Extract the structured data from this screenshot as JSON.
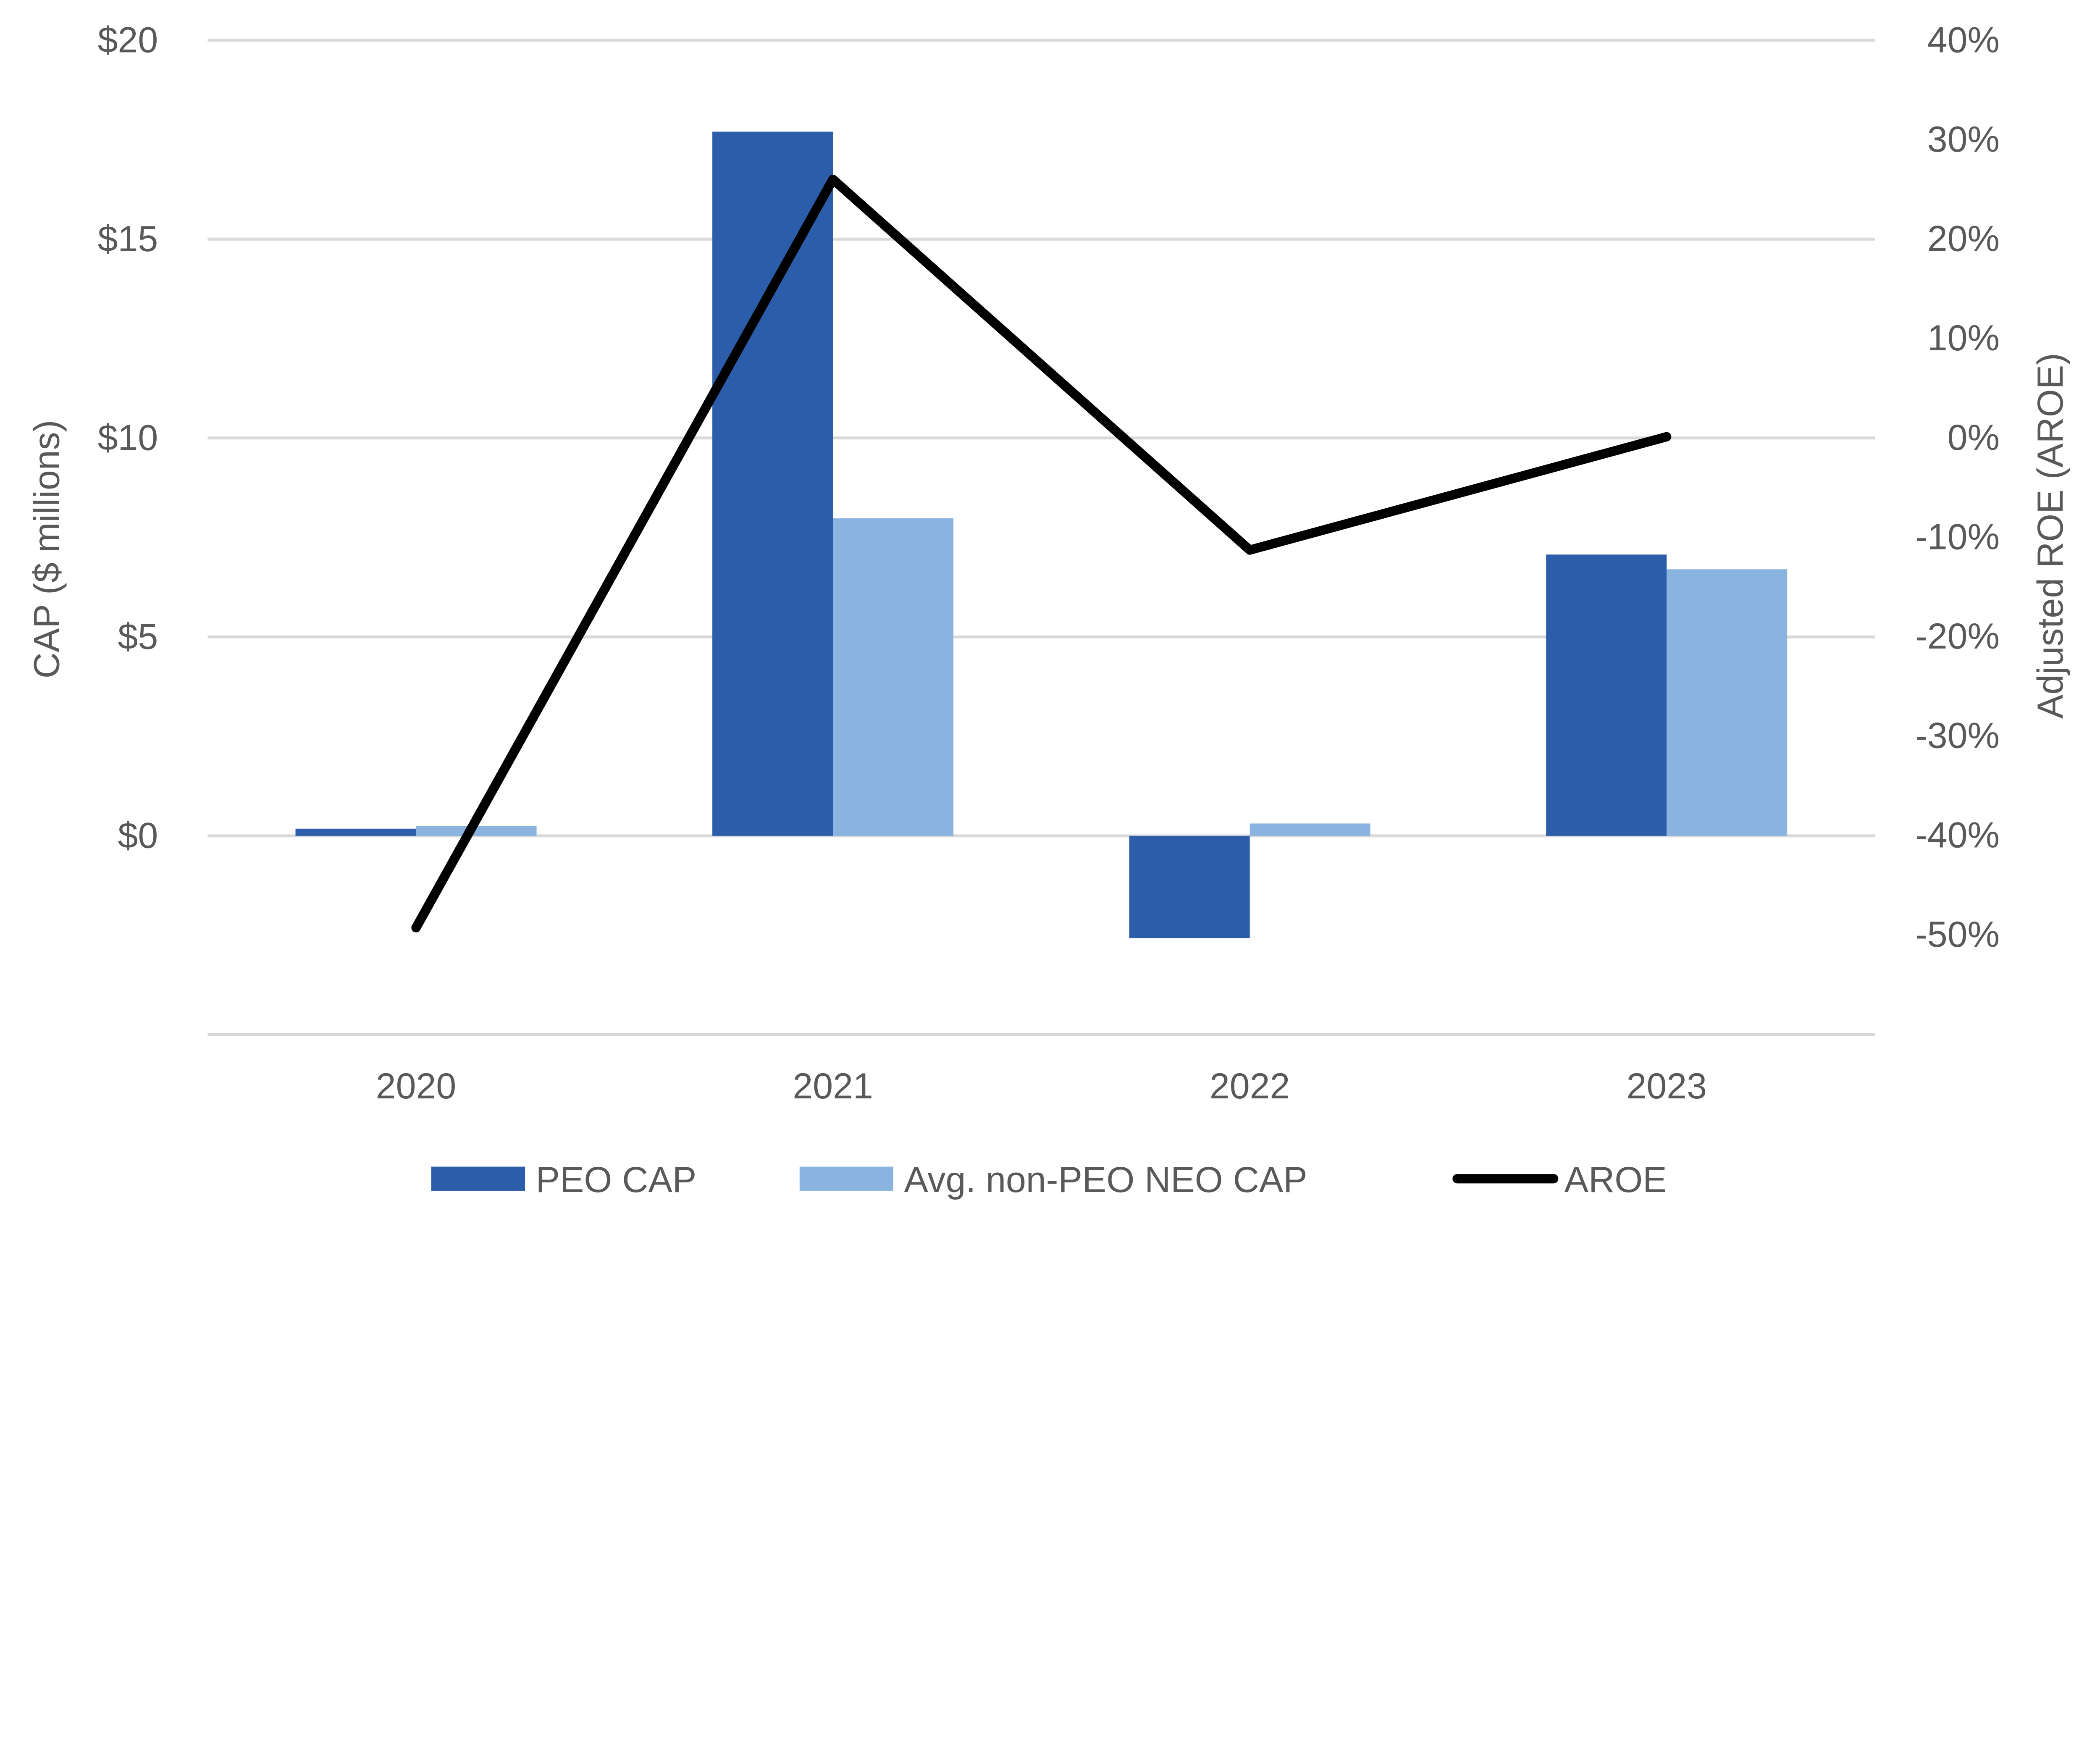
{
  "chart_data": {
    "type": "bar+line",
    "categories": [
      "2020",
      "2021",
      "2022",
      "2023"
    ],
    "series": [
      {
        "name": "PEO CAP",
        "type": "bar",
        "axis": "left",
        "color": "#2B5DAB",
        "values": [
          0.18,
          17.7,
          -2.57,
          7.07
        ]
      },
      {
        "name": "Avg. non-PEO NEO CAP",
        "type": "bar",
        "axis": "left",
        "color": "#8AB3DF",
        "values": [
          0.25,
          7.98,
          0.31,
          6.7
        ]
      },
      {
        "name": "AROE",
        "type": "line",
        "axis": "right",
        "color": "#000000",
        "values": [
          -49.3,
          26.0,
          -11.3,
          0.1
        ]
      }
    ],
    "ylabel": "CAP ($ millions)",
    "y2label": "Adjusted ROE (AROE)",
    "ylim": [
      -5,
      20
    ],
    "y2lim": [
      -60,
      40
    ],
    "yticks": [
      {
        "v": 0,
        "label": "$0"
      },
      {
        "v": 5,
        "label": "$5"
      },
      {
        "v": 10,
        "label": "$10"
      },
      {
        "v": 15,
        "label": "$15"
      },
      {
        "v": 20,
        "label": "$20"
      }
    ],
    "y2ticks": [
      {
        "v": -50,
        "label": "-50%"
      },
      {
        "v": -40,
        "label": "-40%"
      },
      {
        "v": -30,
        "label": "-30%"
      },
      {
        "v": -20,
        "label": "-20%"
      },
      {
        "v": -10,
        "label": "-10%"
      },
      {
        "v": 0,
        "label": "0%"
      },
      {
        "v": 10,
        "label": "10%"
      },
      {
        "v": 20,
        "label": "20%"
      },
      {
        "v": 30,
        "label": "30%"
      },
      {
        "v": 40,
        "label": "40%"
      }
    ],
    "grid": true,
    "legend": "bottom"
  }
}
